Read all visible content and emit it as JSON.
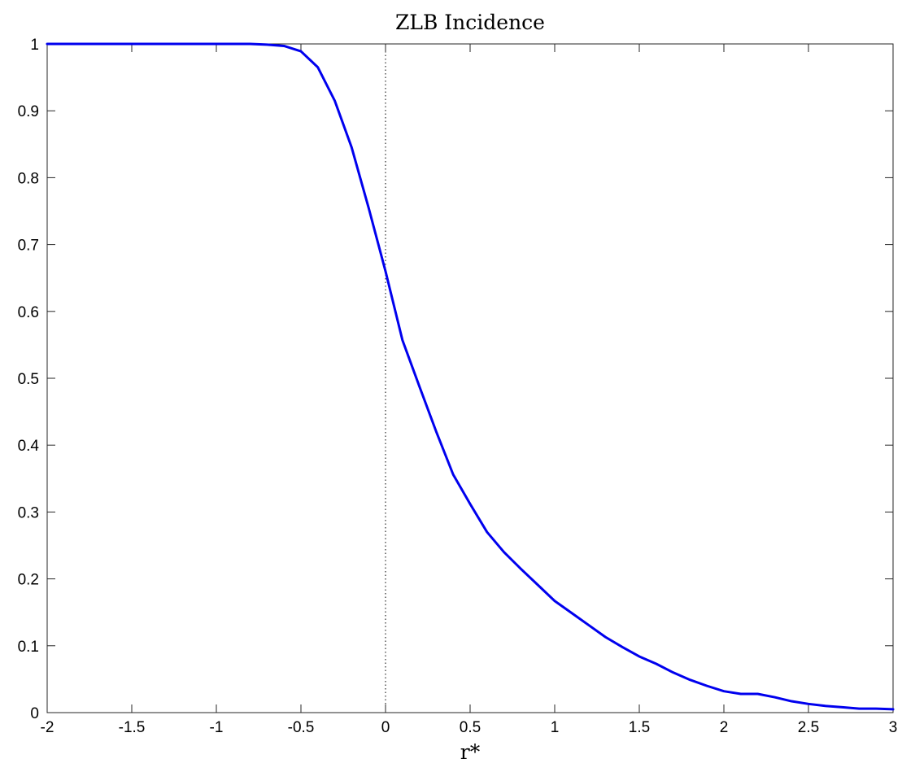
{
  "chart_data": {
    "type": "line",
    "title": "ZLB Incidence",
    "xlabel": "r*",
    "ylabel": "",
    "xlim": [
      -2,
      3
    ],
    "ylim": [
      0,
      1
    ],
    "xticks": [
      -2,
      -1.5,
      -1,
      -0.5,
      0,
      0.5,
      1,
      1.5,
      2,
      2.5,
      3
    ],
    "xtick_labels": [
      "-2",
      "-1.5",
      "-1",
      "-0.5",
      "0",
      "0.5",
      "1",
      "1.5",
      "2",
      "2.5",
      "3"
    ],
    "yticks": [
      0,
      0.1,
      0.2,
      0.3,
      0.4,
      0.5,
      0.6,
      0.7,
      0.8,
      0.9,
      1
    ],
    "ytick_labels": [
      "0",
      "0.1",
      "0.2",
      "0.3",
      "0.4",
      "0.5",
      "0.6",
      "0.7",
      "0.8",
      "0.9",
      "1"
    ],
    "grid": false,
    "vertical_reference_line": {
      "x": 0,
      "style": "dotted"
    },
    "series": [
      {
        "color": "#0000ee",
        "x": [
          -2.0,
          -1.9,
          -1.8,
          -1.7,
          -1.6,
          -1.5,
          -1.4,
          -1.3,
          -1.2,
          -1.1,
          -1.0,
          -0.9,
          -0.8,
          -0.7,
          -0.6,
          -0.5,
          -0.4,
          -0.3,
          -0.2,
          -0.1,
          0.0,
          0.1,
          0.2,
          0.3,
          0.4,
          0.5,
          0.6,
          0.7,
          0.8,
          0.9,
          1.0,
          1.1,
          1.2,
          1.3,
          1.4,
          1.5,
          1.6,
          1.7,
          1.8,
          1.9,
          2.0,
          2.1,
          2.2,
          2.3,
          2.4,
          2.5,
          2.6,
          2.7,
          2.8,
          2.9,
          3.0
        ],
        "y": [
          1.0,
          1.0,
          1.0,
          1.0,
          1.0,
          1.0,
          1.0,
          1.0,
          1.0,
          1.0,
          1.0,
          1.0,
          1.0,
          0.999,
          0.997,
          0.989,
          0.965,
          0.915,
          0.845,
          0.755,
          0.66,
          0.557,
          0.488,
          0.42,
          0.356,
          0.312,
          0.27,
          0.24,
          0.215,
          0.191,
          0.167,
          0.149,
          0.131,
          0.113,
          0.098,
          0.084,
          0.073,
          0.06,
          0.049,
          0.04,
          0.032,
          0.028,
          0.028,
          0.023,
          0.017,
          0.013,
          0.01,
          0.008,
          0.006,
          0.006,
          0.005
        ]
      }
    ]
  }
}
